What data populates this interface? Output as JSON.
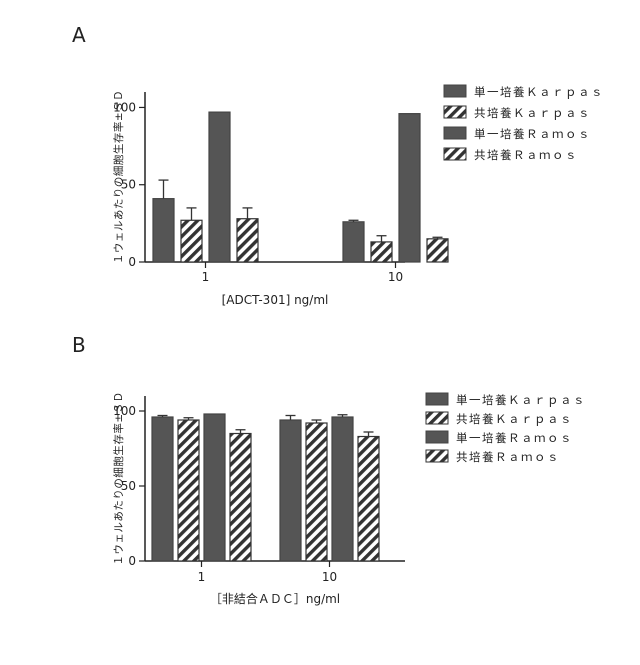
{
  "chart_data": [
    {
      "type": "bar",
      "panel": "A",
      "categories": [
        "1",
        "10"
      ],
      "series": [
        {
          "name": "単一培養Ｋａｒｐａｓ",
          "values": [
            41,
            26
          ],
          "errors": [
            12,
            1
          ]
        },
        {
          "name": "共培養Ｋａｒｐａｓ",
          "values": [
            27,
            13
          ],
          "errors": [
            8,
            4
          ]
        },
        {
          "name": "単一培養Ｒａｍｏｓ",
          "values": [
            97,
            96
          ],
          "errors": [
            0.5,
            0.5
          ]
        },
        {
          "name": "共培養Ｒａｍｏｓ",
          "values": [
            28,
            15
          ],
          "errors": [
            7,
            1
          ]
        }
      ],
      "ylabel": "１ウェルあたりの細胞生存率±ＳＤ",
      "xlabel": "[ADCT-301] ng/ml",
      "ylim": [
        0,
        110
      ],
      "yticks": [
        "0",
        "50",
        "100"
      ],
      "legend": "right"
    },
    {
      "type": "bar",
      "panel": "B",
      "categories": [
        "1",
        "10"
      ],
      "series": [
        {
          "name": "単一培養Ｋａｒｐａｓ",
          "values": [
            96,
            94
          ],
          "errors": [
            1,
            3
          ]
        },
        {
          "name": "共培養Ｋａｒｐａｓ",
          "values": [
            94,
            92
          ],
          "errors": [
            1.5,
            2
          ]
        },
        {
          "name": "単一培養Ｒａｍｏｓ",
          "values": [
            98,
            96
          ],
          "errors": [
            0.5,
            1.5
          ]
        },
        {
          "name": "共培養Ｒａｍｏｓ",
          "values": [
            85,
            83
          ],
          "errors": [
            2.5,
            3
          ]
        }
      ],
      "ylabel": "１ウェルあたりの細胞生存率±ＳＤ",
      "xlabel": "［非結合ＡＤＣ］ng/ml",
      "ylim": [
        0,
        110
      ],
      "yticks": [
        "0",
        "50",
        "100"
      ],
      "legend": "right"
    }
  ]
}
